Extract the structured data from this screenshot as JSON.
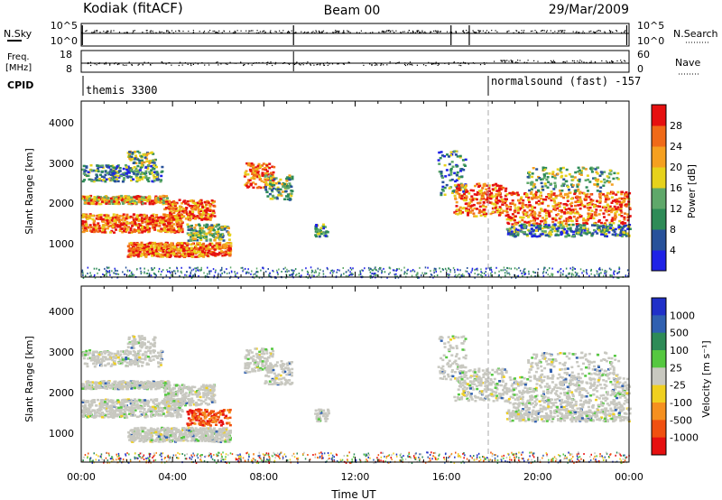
{
  "header": {
    "title": "Kodiak (fitACF)",
    "beam": "Beam 00",
    "date": "29/Mar/2009"
  },
  "top_panels": {
    "nsky_label": "N.Sky",
    "nsearch_label": "N.Search",
    "nsky_ticks": [
      "10^5",
      "10^0"
    ],
    "nsearch_ticks": [
      "10^5",
      "10^0"
    ],
    "freq_label": [
      "Freq.",
      "[MHz]"
    ],
    "freq_ticks": [
      "18",
      "8"
    ],
    "nave_label": "Nave",
    "nave_ticks": [
      "60",
      "0"
    ],
    "cpid_label": "CPID",
    "cpid_segments": [
      {
        "label": "themis 3300",
        "start_hour": 0
      },
      {
        "label": "normalsound (fast) -157",
        "start_hour": 18
      }
    ]
  },
  "chart_data": [
    {
      "type": "heatmap",
      "parameter": "power",
      "ylabel": "Slant Range [km]",
      "yticks": [
        1000,
        2000,
        3000,
        4000
      ],
      "ylim": [
        180,
        4500
      ],
      "xlim": [
        0,
        24
      ],
      "colorbar_label": "Power [dB]",
      "colorbar_ticks": [
        4,
        8,
        12,
        16,
        20,
        24,
        28
      ],
      "colorbar_range": [
        0,
        32
      ],
      "colors": [
        "#1f22e6",
        "#27519a",
        "#2e8b57",
        "#5fa86a",
        "#e6d21c",
        "#f5a020",
        "#f06a18",
        "#e61010"
      ]
    },
    {
      "type": "heatmap",
      "parameter": "velocity",
      "ylabel": "Slant Range [km]",
      "yticks": [
        1000,
        2000,
        3000,
        4000
      ],
      "ylim": [
        180,
        4500
      ],
      "xlim": [
        0,
        24
      ],
      "xlabel": "Time UT",
      "xticks": [
        "00:00",
        "04:00",
        "08:00",
        "12:00",
        "16:00",
        "20:00",
        "00:00"
      ],
      "colorbar_label": "Velocity [m s⁻¹]",
      "colorbar_ticks": [
        "1000",
        "500",
        "100",
        "25",
        "-25",
        "-100",
        "-500",
        "-1000"
      ],
      "colors": [
        "#2030c8",
        "#3060b0",
        "#2e8b57",
        "#55c840",
        "#c8c8c0",
        "#f0d020",
        "#f59020",
        "#f05010",
        "#e61010"
      ]
    }
  ]
}
